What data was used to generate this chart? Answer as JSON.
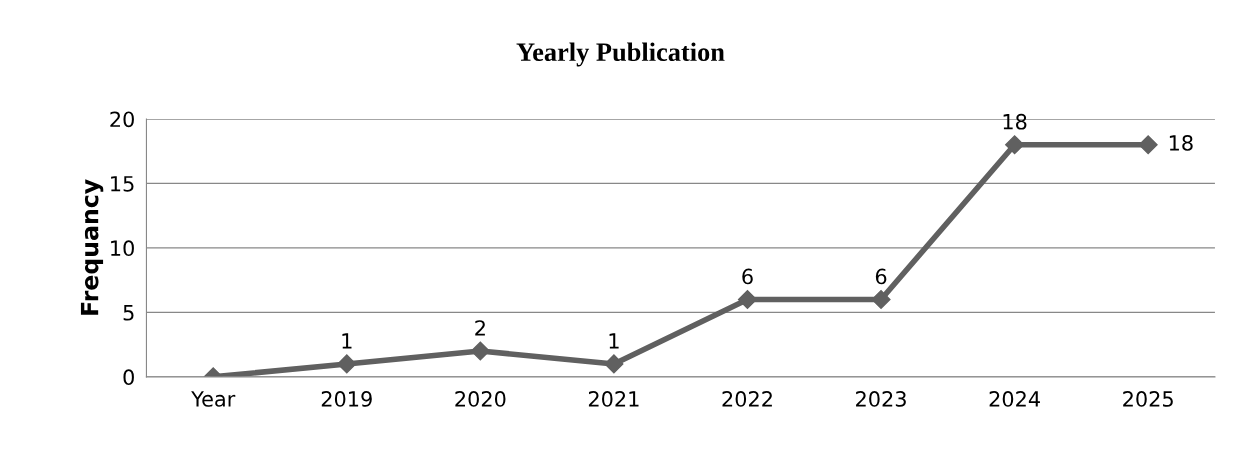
{
  "chart_data": {
    "type": "line",
    "title": "Yearly Publication",
    "ylabel": "Frequancy",
    "categories": [
      "Year",
      "2019",
      "2020",
      "2021",
      "2022",
      "2023",
      "2024",
      "2025"
    ],
    "series": [
      {
        "color": "#606060",
        "values": [
          0,
          1,
          2,
          1,
          6,
          6,
          18,
          18
        ],
        "value_labels": [
          null,
          "1",
          "2",
          "1",
          "6",
          "6",
          "18",
          "18"
        ]
      }
    ],
    "ylim": [
      0,
      20
    ],
    "yticks": [
      0,
      5,
      10,
      15,
      20
    ],
    "grid": "y",
    "marker": "diamond",
    "line_style": "solid",
    "legend": false
  }
}
